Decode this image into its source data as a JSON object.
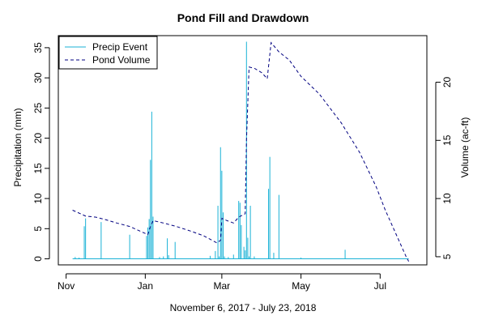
{
  "chart_data": {
    "type": "bar+line",
    "title": "Pond Fill and Drawdown",
    "xlabel": "November 6, 2017 - July 23, 2018",
    "ylabel_left": "Precipitation (mm)",
    "ylabel_right": "Volume (ac-ft)",
    "x_ticks": [
      {
        "label": "Nov",
        "date": "2017-11-01"
      },
      {
        "label": "Jan",
        "date": "2018-01-01"
      },
      {
        "label": "Mar",
        "date": "2018-03-01"
      },
      {
        "label": "May",
        "date": "2018-05-01"
      },
      {
        "label": "Jul",
        "date": "2018-07-01"
      }
    ],
    "xlim": [
      "2017-10-26",
      "2018-08-06"
    ],
    "ylim_left": [
      -1,
      37
    ],
    "yticks_left": [
      0,
      5,
      10,
      15,
      20,
      25,
      30,
      35
    ],
    "ylim_right": [
      4.3,
      24
    ],
    "yticks_right": [
      5,
      10,
      15,
      20
    ],
    "legend": {
      "position": "top-left",
      "entries": [
        {
          "label": "Precip Event",
          "style": "solid",
          "color": "#1ab2d6"
        },
        {
          "label": "Pond Volume",
          "style": "dashed",
          "color": "#000080"
        }
      ]
    },
    "precip": {
      "name": "Precip Event",
      "color": "#1ab2d6",
      "points": [
        [
          "2017-11-08",
          0.3
        ],
        [
          "2017-11-11",
          0.2
        ],
        [
          "2017-11-15",
          5.4
        ],
        [
          "2017-11-16",
          6.7
        ],
        [
          "2017-11-28",
          6.1
        ],
        [
          "2017-12-20",
          4.0
        ],
        [
          "2018-01-02",
          3.8
        ],
        [
          "2018-01-03",
          5.2
        ],
        [
          "2018-01-04",
          6.6
        ],
        [
          "2018-01-05",
          16.4
        ],
        [
          "2018-01-06",
          24.4
        ],
        [
          "2018-01-07",
          7.0
        ],
        [
          "2018-01-12",
          0.3
        ],
        [
          "2018-01-15",
          0.4
        ],
        [
          "2018-01-18",
          3.4
        ],
        [
          "2018-01-19",
          0.6
        ],
        [
          "2018-01-24",
          2.8
        ],
        [
          "2018-02-20",
          0.5
        ],
        [
          "2018-02-24",
          1.3
        ],
        [
          "2018-02-26",
          8.8
        ],
        [
          "2018-02-27",
          0.4
        ],
        [
          "2018-02-28",
          18.5
        ],
        [
          "2018-03-01",
          14.6
        ],
        [
          "2018-03-02",
          7.7
        ],
        [
          "2018-03-03",
          0.4
        ],
        [
          "2018-03-06",
          0.3
        ],
        [
          "2018-03-10",
          0.7
        ],
        [
          "2018-03-14",
          9.6
        ],
        [
          "2018-03-15",
          9.3
        ],
        [
          "2018-03-16",
          5.6
        ],
        [
          "2018-03-18",
          2.0
        ],
        [
          "2018-03-19",
          1.4
        ],
        [
          "2018-03-20",
          36.0
        ],
        [
          "2018-03-21",
          3.5
        ],
        [
          "2018-03-22",
          0.4
        ],
        [
          "2018-03-23",
          8.8
        ],
        [
          "2018-03-26",
          0.4
        ],
        [
          "2018-04-06",
          11.6
        ],
        [
          "2018-04-07",
          16.9
        ],
        [
          "2018-04-10",
          1.0
        ],
        [
          "2018-04-14",
          10.6
        ],
        [
          "2018-05-01",
          0.2
        ],
        [
          "2018-06-04",
          1.5
        ]
      ]
    },
    "volume": {
      "name": "Pond Volume",
      "color": "#000080",
      "points": [
        [
          "2017-11-06",
          9.0
        ],
        [
          "2017-11-12",
          8.7
        ],
        [
          "2017-11-16",
          8.5
        ],
        [
          "2017-11-24",
          8.4
        ],
        [
          "2017-12-01",
          8.2
        ],
        [
          "2017-12-10",
          7.9
        ],
        [
          "2017-12-20",
          7.6
        ],
        [
          "2017-12-28",
          7.2
        ],
        [
          "2018-01-03",
          6.9
        ],
        [
          "2018-01-05",
          7.6
        ],
        [
          "2018-01-07",
          8.1
        ],
        [
          "2018-01-15",
          7.9
        ],
        [
          "2018-01-25",
          7.6
        ],
        [
          "2018-02-05",
          7.2
        ],
        [
          "2018-02-15",
          6.8
        ],
        [
          "2018-02-25",
          6.2
        ],
        [
          "2018-02-28",
          6.4
        ],
        [
          "2018-03-01",
          8.3
        ],
        [
          "2018-03-05",
          8.1
        ],
        [
          "2018-03-10",
          7.9
        ],
        [
          "2018-03-14",
          8.4
        ],
        [
          "2018-03-19",
          8.7
        ],
        [
          "2018-03-20",
          15.0
        ],
        [
          "2018-03-22",
          21.3
        ],
        [
          "2018-03-26",
          21.2
        ],
        [
          "2018-04-01",
          20.8
        ],
        [
          "2018-04-05",
          20.3
        ],
        [
          "2018-04-08",
          23.4
        ],
        [
          "2018-04-14",
          22.6
        ],
        [
          "2018-04-22",
          21.9
        ],
        [
          "2018-05-01",
          20.5
        ],
        [
          "2018-05-15",
          19.0
        ],
        [
          "2018-06-01",
          16.5
        ],
        [
          "2018-06-15",
          14.0
        ],
        [
          "2018-06-28",
          11.0
        ],
        [
          "2018-07-05",
          9.0
        ],
        [
          "2018-07-15",
          6.5
        ],
        [
          "2018-07-21",
          5.0
        ],
        [
          "2018-07-23",
          4.6
        ]
      ]
    }
  }
}
